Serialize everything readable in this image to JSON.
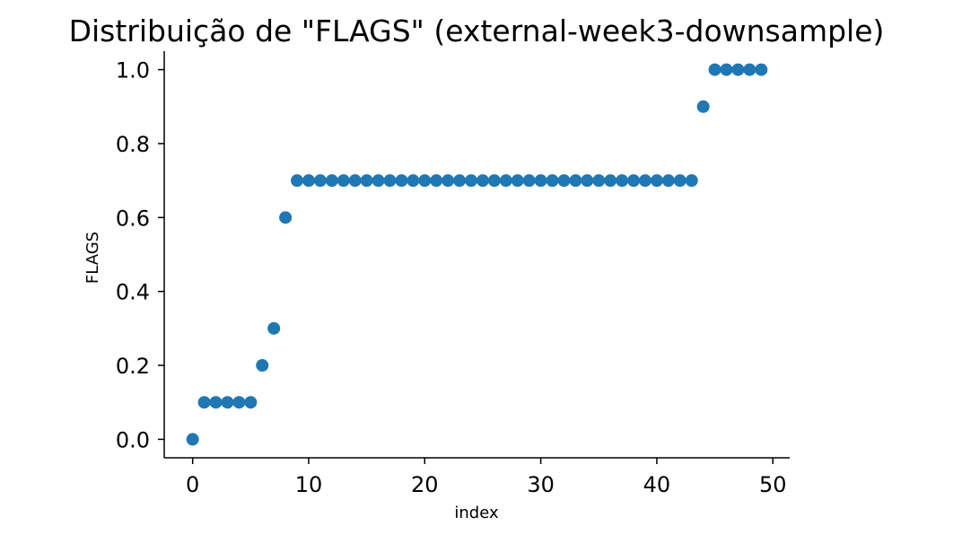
{
  "chart_data": {
    "type": "scatter",
    "title": "Distribuição de \"FLAGS\" (external-week3-downsample)",
    "xlabel": "index",
    "ylabel": "FLAGS",
    "xlim": [
      -2.45,
      51.45
    ],
    "ylim": [
      -0.05,
      1.05
    ],
    "xticks": [
      0,
      10,
      20,
      30,
      40,
      50
    ],
    "xtick_labels": [
      "0",
      "10",
      "20",
      "30",
      "40",
      "50"
    ],
    "yticks": [
      0.0,
      0.2,
      0.4,
      0.6,
      0.8,
      1.0
    ],
    "ytick_labels": [
      "0.0",
      "0.2",
      "0.4",
      "0.6",
      "0.8",
      "1.0"
    ],
    "grid": false,
    "spines": [
      "left",
      "bottom"
    ],
    "color": "#1f77b4",
    "series": [
      {
        "x": [
          0,
          1,
          2,
          3,
          4,
          5,
          6,
          7,
          8,
          9,
          10,
          11,
          12,
          13,
          14,
          15,
          16,
          17,
          18,
          19,
          20,
          21,
          22,
          23,
          24,
          25,
          26,
          27,
          28,
          29,
          30,
          31,
          32,
          33,
          34,
          35,
          36,
          37,
          38,
          39,
          40,
          41,
          42,
          43,
          44,
          45,
          46,
          47,
          48,
          49
        ],
        "y": [
          0.0,
          0.1,
          0.1,
          0.1,
          0.1,
          0.1,
          0.2,
          0.3,
          0.6,
          0.7,
          0.7,
          0.7,
          0.7,
          0.7,
          0.7,
          0.7,
          0.7,
          0.7,
          0.7,
          0.7,
          0.7,
          0.7,
          0.7,
          0.7,
          0.7,
          0.7,
          0.7,
          0.7,
          0.7,
          0.7,
          0.7,
          0.7,
          0.7,
          0.7,
          0.7,
          0.7,
          0.7,
          0.7,
          0.7,
          0.7,
          0.7,
          0.7,
          0.7,
          0.7,
          0.9,
          1.0,
          1.0,
          1.0,
          1.0,
          1.0
        ]
      }
    ]
  }
}
